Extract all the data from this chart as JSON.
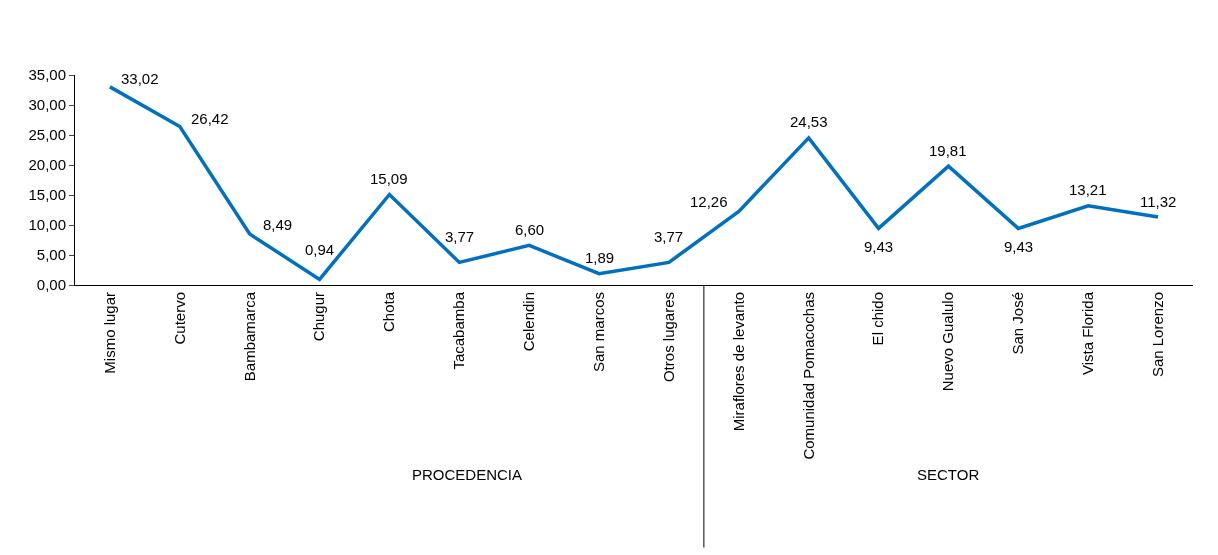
{
  "chart_data": {
    "type": "line",
    "categories": [
      "Mismo lugar",
      "Cutervo",
      "Bambamarca",
      "Chugur",
      "Chota",
      "Tacabamba",
      "Celendin",
      "San marcos",
      "Otros lugares",
      "Miraflores de levanto",
      "Comunidad Pomacochas",
      "El chido",
      "Nuevo Gualulo",
      "San José",
      "Vista Florida",
      "San Lorenzo"
    ],
    "series": [
      {
        "color": "#0070c0",
        "values": [
          33.02,
          26.42,
          8.49,
          0.94,
          15.09,
          3.77,
          6.6,
          1.89,
          3.77,
          12.26,
          24.53,
          9.43,
          19.81,
          9.43,
          13.21,
          11.32
        ],
        "value_labels": [
          "33,02",
          "26,42",
          "8,49",
          "0,94",
          "15,09",
          "3,77",
          "6,60",
          "1,89",
          "3,77",
          "12,26",
          "24,53",
          "9,43",
          "19,81",
          "9,43",
          "13,21",
          "11,32"
        ]
      }
    ],
    "ylim": [
      0,
      35
    ],
    "yticks": [
      {
        "value": 0,
        "label": "0,00"
      },
      {
        "value": 5,
        "label": "5,00"
      },
      {
        "value": 10,
        "label": "10,00"
      },
      {
        "value": 15,
        "label": "15,00"
      },
      {
        "value": 20,
        "label": "20,00"
      },
      {
        "value": 25,
        "label": "25,00"
      },
      {
        "value": 30,
        "label": "30,00"
      },
      {
        "value": 35,
        "label": "35,00"
      }
    ],
    "annotations": [
      "PROCEDENCIA",
      "SECTOR"
    ],
    "grid": false,
    "legend": false
  }
}
